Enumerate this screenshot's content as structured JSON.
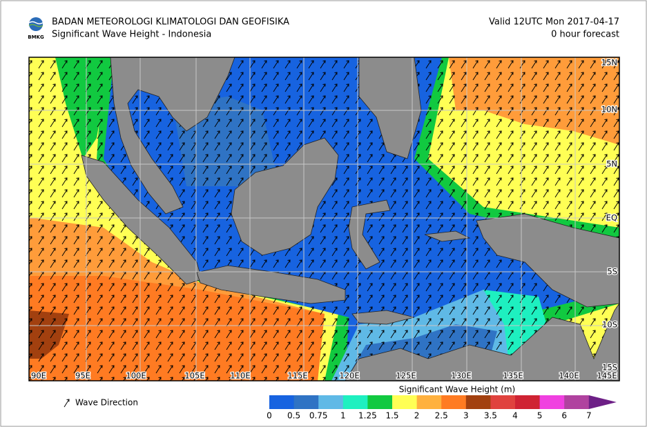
{
  "header": {
    "title": "BADAN METEOROLOGI KLIMATOLOGI DAN GEOFISIKA",
    "subtitle": "Significant Wave Height - Indonesia",
    "logo_text": "BMKG",
    "valid": "Valid 12UTC Mon 2017-04-17",
    "forecast": "0 hour forecast"
  },
  "map": {
    "lat_labels": [
      "15N",
      "10N",
      "5N",
      "EQ",
      "5S",
      "10S",
      "15S"
    ],
    "lon_labels": [
      "90E",
      "95E",
      "100E",
      "105E",
      "110E",
      "115E",
      "120E",
      "125E",
      "130E",
      "135E",
      "140E",
      "145E"
    ]
  },
  "legend": {
    "direction_label": "Wave Direction",
    "title": "Significant Wave Height (m)",
    "ticks": [
      0,
      0.5,
      0.75,
      1,
      1.25,
      1.5,
      2,
      2.5,
      3,
      3.5,
      4,
      5,
      6,
      7
    ],
    "colors": [
      "#1763e0",
      "#2f73c4",
      "#5fb9e6",
      "#1ef0c0",
      "#11c940",
      "#ffff55",
      "#ffb13e",
      "#ff7b22",
      "#a2400f",
      "#e0423e",
      "#cf2333",
      "#f040e0",
      "#b0429f",
      "#6d1f86"
    ]
  }
}
